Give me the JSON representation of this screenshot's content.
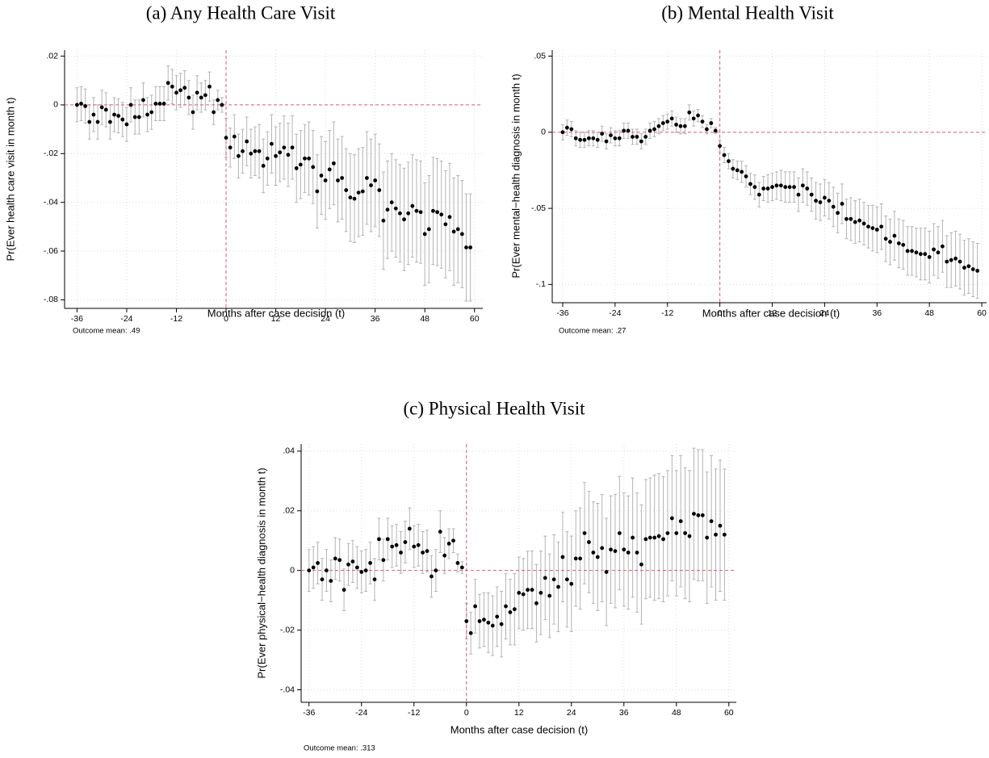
{
  "chart_data": [
    {
      "type": "errorbar",
      "title": "(a) Any Health Care Visit",
      "x_label": "Months after case decision (t)",
      "y_label": "Pr(Ever health care visit in month t)",
      "note": "Outcome mean: .49",
      "x": [
        -36,
        -35,
        -34,
        -33,
        -32,
        -31,
        -30,
        -29,
        -28,
        -27,
        -26,
        -25,
        -24,
        -23,
        -22,
        -21,
        -20,
        -19,
        -18,
        -17,
        -16,
        -15,
        -14,
        -13,
        -12,
        -11,
        -10,
        -9,
        -8,
        -7,
        -6,
        -5,
        -4,
        -3,
        -2,
        -1,
        0,
        1,
        2,
        3,
        4,
        5,
        6,
        7,
        8,
        9,
        10,
        11,
        12,
        13,
        14,
        15,
        16,
        17,
        18,
        19,
        20,
        21,
        22,
        23,
        24,
        25,
        26,
        27,
        28,
        29,
        30,
        31,
        32,
        33,
        34,
        35,
        36,
        37,
        38,
        39,
        40,
        41,
        42,
        43,
        44,
        45,
        46,
        47,
        48,
        49,
        50,
        51,
        52,
        53,
        54,
        55,
        56,
        57,
        58,
        59
      ],
      "values": [
        0,
        0.0005,
        -0.0005,
        -0.007,
        -0.004,
        -0.007,
        -0.001,
        -0.002,
        -0.007,
        -0.004,
        -0.0045,
        -0.006,
        -0.008,
        0,
        -0.005,
        -0.005,
        0.002,
        -0.004,
        -0.003,
        0.0005,
        0.0005,
        0.0005,
        0.009,
        0.0075,
        0.005,
        0.006,
        0.007,
        0.003,
        -0.003,
        0.005,
        0.003,
        0.004,
        0.0075,
        -0.003,
        0.002,
        0,
        -0.0135,
        -0.0175,
        -0.013,
        -0.021,
        -0.019,
        -0.015,
        -0.02,
        -0.019,
        -0.019,
        -0.025,
        -0.022,
        -0.016,
        -0.021,
        -0.0195,
        -0.0175,
        -0.0205,
        -0.0175,
        -0.026,
        -0.0245,
        -0.022,
        -0.022,
        -0.0255,
        -0.0355,
        -0.029,
        -0.031,
        -0.0265,
        -0.024,
        -0.031,
        -0.03,
        -0.035,
        -0.038,
        -0.0385,
        -0.036,
        -0.0355,
        -0.03,
        -0.033,
        -0.031,
        -0.035,
        -0.0475,
        -0.043,
        -0.04,
        -0.0425,
        -0.0445,
        -0.047,
        -0.0445,
        -0.0415,
        -0.0435,
        -0.044,
        -0.053,
        -0.051,
        -0.0435,
        -0.044,
        -0.045,
        -0.049,
        -0.046,
        -0.052,
        -0.051,
        -0.053,
        -0.0585,
        -0.0585
      ],
      "errors": [
        0.007,
        0.007,
        0.007,
        0.007,
        0.007,
        0.007,
        0.007,
        0.007,
        0.007,
        0.007,
        0.007,
        0.007,
        0.007,
        0.007,
        0.007,
        0.007,
        0.007,
        0.007,
        0.007,
        0.007,
        0.007,
        0.007,
        0.007,
        0.007,
        0.007,
        0.007,
        0.007,
        0.007,
        0.007,
        0.007,
        0.006,
        0.006,
        0.006,
        0.005,
        0.004,
        0.003,
        0.008,
        0.008,
        0.009,
        0.009,
        0.009,
        0.01,
        0.01,
        0.01,
        0.011,
        0.011,
        0.011,
        0.012,
        0.012,
        0.012,
        0.013,
        0.013,
        0.013,
        0.014,
        0.014,
        0.014,
        0.015,
        0.015,
        0.015,
        0.016,
        0.016,
        0.016,
        0.017,
        0.017,
        0.017,
        0.017,
        0.018,
        0.018,
        0.018,
        0.018,
        0.019,
        0.019,
        0.019,
        0.019,
        0.02,
        0.02,
        0.02,
        0.02,
        0.02,
        0.021,
        0.021,
        0.021,
        0.021,
        0.021,
        0.021,
        0.022,
        0.022,
        0.022,
        0.022,
        0.022,
        0.022,
        0.022,
        0.022,
        0.022,
        0.022,
        0.022
      ],
      "xlim": [
        -39,
        62
      ],
      "xticks": [
        -36,
        -24,
        -12,
        0,
        12,
        24,
        36,
        48,
        60
      ],
      "ylim": [
        -0.0835,
        0.0225
      ],
      "yticks": [
        {
          "value": 0.02,
          "label": ".02"
        },
        0,
        {
          "value": -0.02,
          "label": "-.02"
        },
        {
          "value": -0.04,
          "label": "-.04"
        },
        {
          "value": -0.06,
          "label": "-.06"
        },
        {
          "value": -0.08,
          "label": "-.08"
        }
      ],
      "grid": true,
      "vline": 0,
      "hline": 0,
      "color": "#000000",
      "error_color": "#b4b4b4",
      "refline_color": "#d0607a"
    },
    {
      "type": "errorbar",
      "title": "(b) Mental Health Visit",
      "x_label": "Months after case decision (t)",
      "y_label": "Pr(Ever mental−health diagnosis in month t)",
      "note": "Outcome mean: .27",
      "x": [
        -36,
        -35,
        -34,
        -33,
        -32,
        -31,
        -30,
        -29,
        -28,
        -27,
        -26,
        -25,
        -24,
        -23,
        -22,
        -21,
        -20,
        -19,
        -18,
        -17,
        -16,
        -15,
        -14,
        -13,
        -12,
        -11,
        -10,
        -9,
        -8,
        -7,
        -6,
        -5,
        -4,
        -3,
        -2,
        -1,
        0,
        1,
        2,
        3,
        4,
        5,
        6,
        7,
        8,
        9,
        10,
        11,
        12,
        13,
        14,
        15,
        16,
        17,
        18,
        19,
        20,
        21,
        22,
        23,
        24,
        25,
        26,
        27,
        28,
        29,
        30,
        31,
        32,
        33,
        34,
        35,
        36,
        37,
        38,
        39,
        40,
        41,
        42,
        43,
        44,
        45,
        46,
        47,
        48,
        49,
        50,
        51,
        52,
        53,
        54,
        55,
        56,
        57,
        58,
        59
      ],
      "values": [
        0,
        0.003,
        0.002,
        -0.004,
        -0.005,
        -0.005,
        -0.004,
        -0.004,
        -0.005,
        -0.001,
        -0.006,
        -0.002,
        -0.004,
        -0.004,
        0.001,
        0.001,
        -0.003,
        -0.003,
        -0.006,
        -0.003,
        0.001,
        0.002,
        0.004,
        0.006,
        0.007,
        0.009,
        0.005,
        0.004,
        0.004,
        0.013,
        0.009,
        0.011,
        0.007,
        0.002,
        0.006,
        0.001,
        -0.009,
        -0.015,
        -0.019,
        -0.024,
        -0.025,
        -0.026,
        -0.029,
        -0.034,
        -0.036,
        -0.041,
        -0.037,
        -0.037,
        -0.036,
        -0.035,
        -0.035,
        -0.036,
        -0.036,
        -0.036,
        -0.041,
        -0.035,
        -0.037,
        -0.041,
        -0.045,
        -0.046,
        -0.043,
        -0.045,
        -0.049,
        -0.053,
        -0.047,
        -0.057,
        -0.057,
        -0.059,
        -0.058,
        -0.06,
        -0.062,
        -0.063,
        -0.064,
        -0.062,
        -0.07,
        -0.072,
        -0.068,
        -0.073,
        -0.074,
        -0.078,
        -0.078,
        -0.079,
        -0.08,
        -0.08,
        -0.082,
        -0.077,
        -0.079,
        -0.075,
        -0.085,
        -0.084,
        -0.083,
        -0.085,
        -0.089,
        -0.088,
        -0.09,
        -0.091
      ],
      "errors": [
        0.005,
        0.005,
        0.005,
        0.005,
        0.005,
        0.005,
        0.005,
        0.005,
        0.005,
        0.005,
        0.005,
        0.005,
        0.005,
        0.005,
        0.005,
        0.005,
        0.005,
        0.005,
        0.005,
        0.005,
        0.005,
        0.005,
        0.005,
        0.005,
        0.005,
        0.005,
        0.005,
        0.005,
        0.005,
        0.005,
        0.005,
        0.004,
        0.004,
        0.003,
        0.003,
        0.002,
        0.004,
        0.005,
        0.005,
        0.006,
        0.006,
        0.007,
        0.007,
        0.007,
        0.008,
        0.008,
        0.008,
        0.009,
        0.009,
        0.009,
        0.01,
        0.01,
        0.01,
        0.01,
        0.011,
        0.011,
        0.011,
        0.011,
        0.012,
        0.012,
        0.012,
        0.012,
        0.013,
        0.013,
        0.013,
        0.013,
        0.014,
        0.014,
        0.014,
        0.014,
        0.014,
        0.015,
        0.015,
        0.015,
        0.015,
        0.015,
        0.016,
        0.016,
        0.016,
        0.016,
        0.016,
        0.016,
        0.017,
        0.017,
        0.017,
        0.017,
        0.017,
        0.017,
        0.017,
        0.018,
        0.018,
        0.018,
        0.018,
        0.018,
        0.018,
        0.018
      ],
      "xlim": [
        -38.4,
        61.1
      ],
      "xticks": [
        -36,
        -24,
        -12,
        0,
        12,
        24,
        36,
        48,
        60
      ],
      "ylim": [
        -0.112,
        0.054
      ],
      "yticks": [
        {
          "value": 0.05,
          "label": ".05"
        },
        0,
        {
          "value": -0.05,
          "label": "-.05"
        },
        {
          "value": -0.1,
          "label": "-.1"
        }
      ],
      "grid": true,
      "vline": 0,
      "hline": 0,
      "color": "#000000",
      "error_color": "#b4b4b4",
      "refline_color": "#d0607a"
    },
    {
      "type": "errorbar",
      "title": "(c) Physical Health Visit",
      "x_label": "Months after case decision (t)",
      "y_label": "Pr(Ever physical−health diagnosis in month t)",
      "note": "Outcome mean: .313",
      "x": [
        -36,
        -35,
        -34,
        -33,
        -32,
        -31,
        -30,
        -29,
        -28,
        -27,
        -26,
        -25,
        -24,
        -23,
        -22,
        -21,
        -20,
        -19,
        -18,
        -17,
        -16,
        -15,
        -14,
        -13,
        -12,
        -11,
        -10,
        -9,
        -8,
        -7,
        -6,
        -5,
        -4,
        -3,
        -2,
        -1,
        0,
        1,
        2,
        3,
        4,
        5,
        6,
        7,
        8,
        9,
        10,
        11,
        12,
        13,
        14,
        15,
        16,
        17,
        18,
        19,
        20,
        21,
        22,
        23,
        24,
        25,
        26,
        27,
        28,
        29,
        30,
        31,
        32,
        33,
        34,
        35,
        36,
        37,
        38,
        39,
        40,
        41,
        42,
        43,
        44,
        45,
        46,
        47,
        48,
        49,
        50,
        51,
        52,
        53,
        54,
        55,
        56,
        57,
        58,
        59
      ],
      "values": [
        0,
        0.001,
        0.0025,
        -0.003,
        0,
        -0.0035,
        0.004,
        0.0035,
        -0.0065,
        0.002,
        0.003,
        0.001,
        -0.0005,
        0,
        0.0025,
        -0.003,
        0.0105,
        0.0035,
        0.0105,
        0.008,
        0.0085,
        0.006,
        0.0095,
        0.014,
        0.008,
        0.0085,
        0.006,
        0.0065,
        -0.002,
        0,
        0.013,
        0.005,
        0.009,
        0.01,
        0.0025,
        0.001,
        -0.017,
        -0.021,
        -0.012,
        -0.017,
        -0.0165,
        -0.0175,
        -0.0185,
        -0.0155,
        -0.018,
        -0.012,
        -0.014,
        -0.013,
        -0.0075,
        -0.008,
        -0.0065,
        -0.0065,
        -0.011,
        -0.0075,
        -0.0025,
        -0.0085,
        -0.003,
        -0.0055,
        0.0045,
        -0.003,
        -0.0045,
        0.004,
        0.004,
        0.0125,
        0.0095,
        0.006,
        0.0045,
        0.0075,
        -0.0005,
        0.007,
        0.0065,
        0.0125,
        0.007,
        0.006,
        0.011,
        0.006,
        0.002,
        0.0105,
        0.011,
        0.011,
        0.0115,
        0.0105,
        0.0125,
        0.0175,
        0.0125,
        0.0165,
        0.0125,
        0.0115,
        0.019,
        0.0185,
        0.0185,
        0.011,
        0.0165,
        0.012,
        0.015,
        0.012
      ],
      "errors": [
        0.007,
        0.007,
        0.007,
        0.007,
        0.007,
        0.007,
        0.007,
        0.007,
        0.007,
        0.007,
        0.007,
        0.007,
        0.007,
        0.007,
        0.007,
        0.007,
        0.007,
        0.007,
        0.007,
        0.007,
        0.007,
        0.007,
        0.007,
        0.007,
        0.007,
        0.007,
        0.007,
        0.007,
        0.007,
        0.007,
        0.007,
        0.006,
        0.005,
        0.004,
        0.003,
        0.002,
        0.006,
        0.007,
        0.009,
        0.009,
        0.009,
        0.01,
        0.01,
        0.01,
        0.011,
        0.011,
        0.011,
        0.012,
        0.012,
        0.012,
        0.013,
        0.013,
        0.013,
        0.014,
        0.014,
        0.014,
        0.015,
        0.015,
        0.015,
        0.016,
        0.016,
        0.016,
        0.017,
        0.017,
        0.017,
        0.017,
        0.018,
        0.018,
        0.018,
        0.018,
        0.019,
        0.019,
        0.019,
        0.019,
        0.02,
        0.02,
        0.02,
        0.02,
        0.02,
        0.021,
        0.021,
        0.021,
        0.021,
        0.021,
        0.021,
        0.022,
        0.022,
        0.022,
        0.022,
        0.022,
        0.022,
        0.022,
        0.022,
        0.022,
        0.022,
        0.022
      ],
      "xlim": [
        -37.8,
        61.7
      ],
      "xticks": [
        -36,
        -24,
        -12,
        0,
        12,
        24,
        36,
        48,
        60
      ],
      "ylim": [
        -0.0442,
        0.0424
      ],
      "yticks": [
        {
          "value": 0.04,
          "label": ".04"
        },
        {
          "value": 0.02,
          "label": ".02"
        },
        0,
        {
          "value": -0.02,
          "label": "-.02"
        },
        {
          "value": -0.04,
          "label": "-.04"
        }
      ],
      "grid": true,
      "vline": 0,
      "hline": 0,
      "color": "#000000",
      "error_color": "#b4b4b4",
      "refline_color": "#d0607a"
    }
  ]
}
